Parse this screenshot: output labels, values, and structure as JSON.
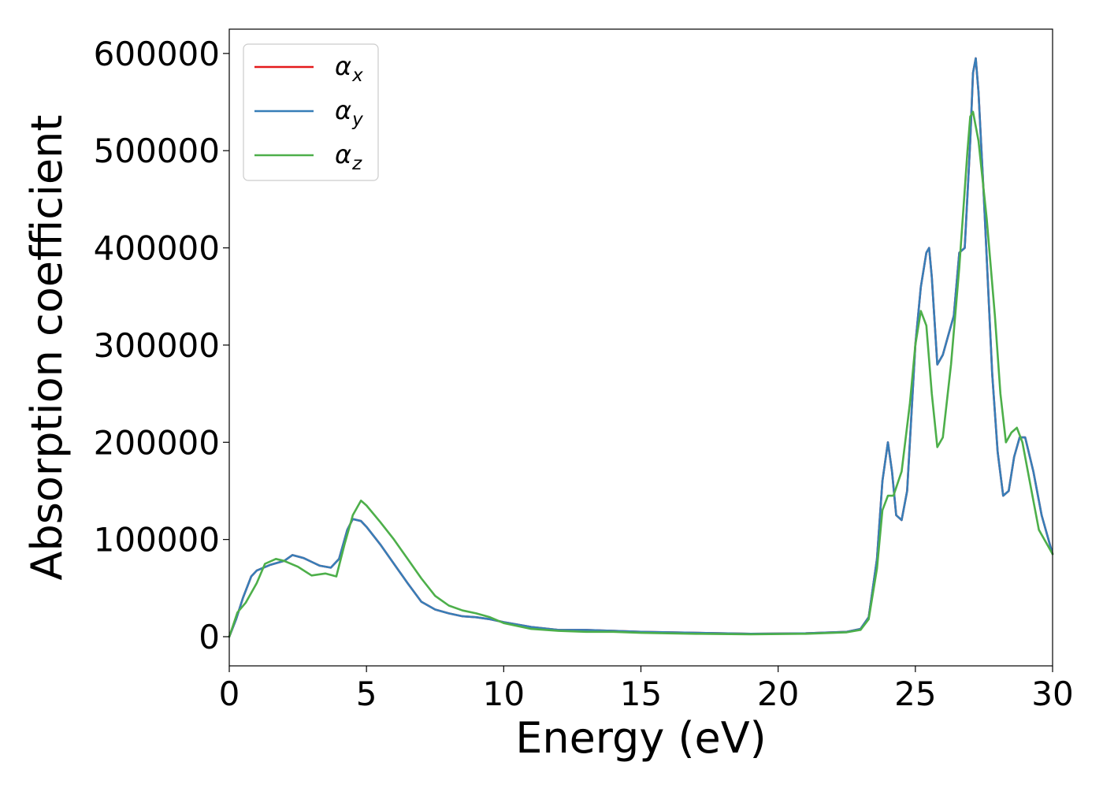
{
  "chart_data": {
    "type": "line",
    "xlabel": "Energy (eV)",
    "ylabel": "Absorption coefficient",
    "xlim": [
      0,
      30
    ],
    "ylim": [
      -30000,
      625000
    ],
    "xticks": [
      0,
      5,
      10,
      15,
      20,
      25,
      30
    ],
    "xtick_labels": [
      "0",
      "5",
      "10",
      "15",
      "20",
      "25",
      "30"
    ],
    "yticks": [
      0,
      100000,
      200000,
      300000,
      400000,
      500000,
      600000
    ],
    "ytick_labels": [
      "0",
      "100000",
      "200000",
      "300000",
      "400000",
      "500000",
      "600000"
    ],
    "grid": false,
    "legend_position": "top-left",
    "series": [
      {
        "name": "α",
        "subscript": "x",
        "color": "#e41a1c",
        "x": [
          0,
          0.25,
          0.5,
          0.8,
          1.0,
          1.5,
          2.0,
          2.3,
          2.7,
          3.0,
          3.3,
          3.7,
          4.0,
          4.3,
          4.5,
          4.8,
          5.0,
          5.5,
          6.0,
          6.5,
          7.0,
          7.5,
          8.0,
          8.5,
          9.0,
          9.5,
          10.0,
          11.0,
          12.0,
          13.0,
          14.0,
          15.0,
          17.0,
          19.0,
          21.0,
          22.5,
          23.0,
          23.3,
          23.6,
          23.8,
          24.0,
          24.15,
          24.3,
          24.5,
          24.7,
          25.0,
          25.2,
          25.4,
          25.5,
          25.6,
          25.8,
          26.0,
          26.2,
          26.4,
          26.6,
          26.8,
          27.0,
          27.1,
          27.2,
          27.3,
          27.5,
          27.8,
          28.0,
          28.2,
          28.4,
          28.6,
          28.8,
          29.0,
          29.3,
          29.6,
          30.0
        ],
        "y": [
          0,
          18000,
          40000,
          62000,
          68000,
          74000,
          78000,
          84000,
          81000,
          77000,
          73000,
          71000,
          80000,
          110000,
          121000,
          119000,
          113000,
          95000,
          75000,
          55000,
          36000,
          28000,
          24000,
          21000,
          20000,
          18000,
          15000,
          10000,
          7000,
          7000,
          6000,
          5000,
          4000,
          3000,
          3500,
          5000,
          8000,
          20000,
          80000,
          160000,
          200000,
          170000,
          125000,
          120000,
          150000,
          300000,
          360000,
          395000,
          400000,
          370000,
          280000,
          290000,
          310000,
          330000,
          395000,
          400000,
          510000,
          580000,
          595000,
          560000,
          450000,
          270000,
          190000,
          145000,
          150000,
          185000,
          205000,
          205000,
          170000,
          125000,
          85000
        ]
      },
      {
        "name": "α",
        "subscript": "y",
        "color": "#377eb8",
        "x": [
          0,
          0.25,
          0.5,
          0.8,
          1.0,
          1.5,
          2.0,
          2.3,
          2.7,
          3.0,
          3.3,
          3.7,
          4.0,
          4.3,
          4.5,
          4.8,
          5.0,
          5.5,
          6.0,
          6.5,
          7.0,
          7.5,
          8.0,
          8.5,
          9.0,
          9.5,
          10.0,
          11.0,
          12.0,
          13.0,
          14.0,
          15.0,
          17.0,
          19.0,
          21.0,
          22.5,
          23.0,
          23.3,
          23.6,
          23.8,
          24.0,
          24.15,
          24.3,
          24.5,
          24.7,
          25.0,
          25.2,
          25.4,
          25.5,
          25.6,
          25.8,
          26.0,
          26.2,
          26.4,
          26.6,
          26.8,
          27.0,
          27.1,
          27.2,
          27.3,
          27.5,
          27.8,
          28.0,
          28.2,
          28.4,
          28.6,
          28.8,
          29.0,
          29.3,
          29.6,
          30.0
        ],
        "y": [
          0,
          18000,
          40000,
          62000,
          68000,
          74000,
          78000,
          84000,
          81000,
          77000,
          73000,
          71000,
          80000,
          110000,
          121000,
          119000,
          113000,
          95000,
          75000,
          55000,
          36000,
          28000,
          24000,
          21000,
          20000,
          18000,
          15000,
          10000,
          7000,
          7000,
          6000,
          5000,
          4000,
          3000,
          3500,
          5000,
          8000,
          20000,
          80000,
          160000,
          200000,
          170000,
          125000,
          120000,
          150000,
          300000,
          360000,
          395000,
          400000,
          370000,
          280000,
          290000,
          310000,
          330000,
          395000,
          400000,
          510000,
          580000,
          595000,
          560000,
          450000,
          270000,
          190000,
          145000,
          150000,
          185000,
          205000,
          205000,
          170000,
          125000,
          85000
        ]
      },
      {
        "name": "α",
        "subscript": "z",
        "color": "#4daf4a",
        "x": [
          0,
          0.3,
          0.6,
          1.0,
          1.3,
          1.7,
          2.0,
          2.5,
          3.0,
          3.5,
          3.9,
          4.2,
          4.5,
          4.8,
          5.0,
          5.5,
          6.0,
          6.5,
          7.0,
          7.5,
          8.0,
          8.5,
          9.0,
          9.5,
          10.0,
          11.0,
          12.0,
          13.0,
          14.0,
          15.0,
          17.0,
          19.0,
          21.0,
          22.5,
          23.0,
          23.3,
          23.6,
          23.8,
          24.0,
          24.2,
          24.5,
          24.8,
          25.0,
          25.2,
          25.4,
          25.6,
          25.8,
          26.0,
          26.3,
          26.6,
          26.9,
          27.0,
          27.1,
          27.3,
          27.6,
          27.9,
          28.1,
          28.3,
          28.5,
          28.7,
          28.9,
          29.2,
          29.5,
          30.0
        ],
        "y": [
          0,
          25000,
          35000,
          55000,
          75000,
          80000,
          78000,
          72000,
          63000,
          65000,
          62000,
          95000,
          125000,
          140000,
          135000,
          118000,
          100000,
          80000,
          60000,
          42000,
          32000,
          27000,
          24000,
          20000,
          14000,
          8000,
          6000,
          5000,
          5000,
          4000,
          3000,
          2500,
          3000,
          4500,
          7000,
          18000,
          70000,
          130000,
          145000,
          145000,
          170000,
          240000,
          300000,
          335000,
          320000,
          250000,
          195000,
          205000,
          280000,
          380000,
          500000,
          535000,
          540000,
          510000,
          430000,
          330000,
          250000,
          200000,
          210000,
          215000,
          200000,
          155000,
          110000,
          85000
        ]
      }
    ]
  }
}
